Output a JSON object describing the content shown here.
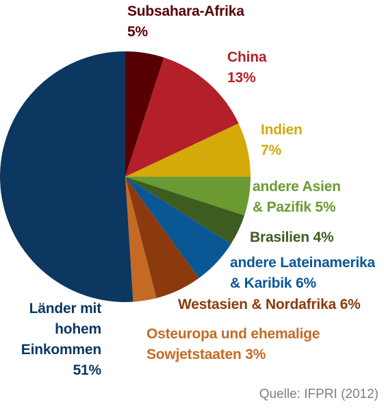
{
  "chart_data": {
    "type": "pie",
    "start_angle_deg": 0,
    "direction": "clockwise",
    "slices": [
      {
        "label": [
          "Subsahara-Afrika",
          "5%"
        ],
        "value": 5,
        "color": "#560004"
      },
      {
        "label": [
          "China",
          "13%"
        ],
        "value": 13,
        "color": "#b3202a"
      },
      {
        "label": [
          "Indien",
          "7%"
        ],
        "value": 7,
        "color": "#d4aa0b"
      },
      {
        "label": [
          "andere Asien",
          "& Pazifik 5%"
        ],
        "value": 5,
        "color": "#6a9a31"
      },
      {
        "label": [
          "Brasilien 4%"
        ],
        "value": 4,
        "color": "#3d5c1f"
      },
      {
        "label": [
          "andere Lateinamerika",
          "& Karibik 6%"
        ],
        "value": 6,
        "color": "#0a5796"
      },
      {
        "label": [
          "Westasien & Nordafrika 6%"
        ],
        "value": 6,
        "color": "#8b3a0e"
      },
      {
        "label": [
          "Osteuropa und ehemalige",
          "Sowjetstaaten 3%"
        ],
        "value": 3,
        "color": "#c46a24"
      },
      {
        "label": [
          "Länder mit",
          "hohem",
          "Einkommen",
          "51%"
        ],
        "value": 51,
        "color": "#0b3761"
      }
    ],
    "label_colors": [
      "#560004",
      "#b3202a",
      "#d4aa0b",
      "#6a9a31",
      "#3d5c1f",
      "#0a5796",
      "#8b3a0e",
      "#c46a24",
      "#0b3761"
    ]
  },
  "source": "Quelle: IFPRI (2012)"
}
